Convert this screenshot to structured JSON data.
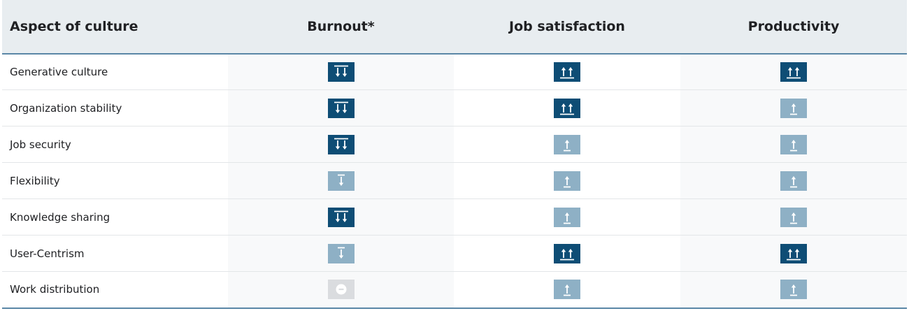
{
  "table": {
    "headers": [
      "Aspect of culture",
      "Burnout*",
      "Job satisfaction",
      "Productivity"
    ],
    "rows": [
      {
        "aspect": "Generative culture",
        "burnout": "strong-decrease",
        "job_satisfaction": "strong-increase",
        "productivity": "strong-increase"
      },
      {
        "aspect": "Organization stability",
        "burnout": "strong-decrease",
        "job_satisfaction": "strong-increase",
        "productivity": "increase"
      },
      {
        "aspect": "Job security",
        "burnout": "strong-decrease",
        "job_satisfaction": "increase",
        "productivity": "increase"
      },
      {
        "aspect": "Flexibility",
        "burnout": "decrease",
        "job_satisfaction": "increase",
        "productivity": "increase"
      },
      {
        "aspect": "Knowledge sharing",
        "burnout": "strong-decrease",
        "job_satisfaction": "increase",
        "productivity": "increase"
      },
      {
        "aspect": "User-Centrism",
        "burnout": "decrease",
        "job_satisfaction": "strong-increase",
        "productivity": "strong-increase"
      },
      {
        "aspect": "Work distribution",
        "burnout": "no-effect",
        "job_satisfaction": "increase",
        "productivity": "increase"
      }
    ]
  },
  "colors": {
    "strong": "#0e4d75",
    "moderate": "#8eb0c5",
    "neutral": "#dadcdf",
    "header_bg": "#e8edf0",
    "rule": "#5a87a6"
  },
  "icons": {
    "strong-decrease": "double-down-arrow-icon",
    "decrease": "down-arrow-icon",
    "strong-increase": "double-up-arrow-icon",
    "increase": "up-arrow-icon",
    "no-effect": "minus-circle-icon"
  }
}
